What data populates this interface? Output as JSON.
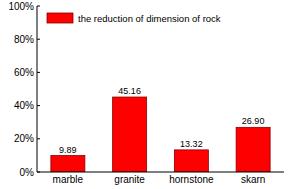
{
  "chart_data": {
    "type": "bar",
    "categories": [
      "marble",
      "granite",
      "hornstone",
      "skarn"
    ],
    "series": [
      {
        "name": "the reduction of dimension of rock",
        "color": "#ff0000",
        "values": [
          9.89,
          45.16,
          13.32,
          26.9
        ],
        "value_labels": [
          "9.89",
          "45.16",
          "13.32",
          "26.90"
        ]
      }
    ],
    "ylim": [
      0,
      100
    ],
    "yticks": [
      {
        "value": 0,
        "label": "0%"
      },
      {
        "value": 20,
        "label": "20%"
      },
      {
        "value": 40,
        "label": "40%"
      },
      {
        "value": 60,
        "label": "60%"
      },
      {
        "value": 80,
        "label": "80%"
      },
      {
        "value": 100,
        "label": "100%"
      }
    ],
    "grid": false,
    "legend": "upper left",
    "data_labels": true
  }
}
